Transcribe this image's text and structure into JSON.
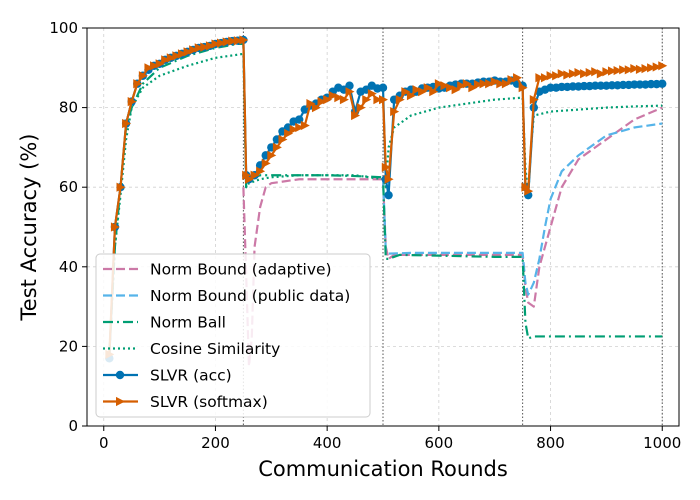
{
  "chart_data": {
    "type": "line",
    "xlabel": "Communication Rounds",
    "ylabel": "Test Accuracy (%)",
    "xlim": [
      -30,
      1030
    ],
    "ylim": [
      0,
      100
    ],
    "xticks": [
      0,
      200,
      400,
      600,
      800,
      1000
    ],
    "yticks": [
      0,
      20,
      40,
      60,
      80,
      100
    ],
    "grid": true,
    "vlines": [
      250,
      500,
      750,
      1000
    ],
    "legend_position": "lower-left",
    "series": [
      {
        "name": "Norm Bound (adaptive)",
        "color": "#cc79a7",
        "style": "dashed",
        "marker": "none",
        "points": [
          [
            250,
            60
          ],
          [
            255,
            38
          ],
          [
            260,
            15
          ],
          [
            265,
            22
          ],
          [
            270,
            45
          ],
          [
            280,
            55
          ],
          [
            290,
            60
          ],
          [
            300,
            61
          ],
          [
            350,
            62
          ],
          [
            400,
            62
          ],
          [
            450,
            62
          ],
          [
            500,
            62
          ],
          [
            505,
            45
          ],
          [
            510,
            42
          ],
          [
            520,
            43
          ],
          [
            600,
            43
          ],
          [
            700,
            43
          ],
          [
            750,
            43
          ],
          [
            755,
            35
          ],
          [
            760,
            31
          ],
          [
            770,
            30
          ],
          [
            780,
            40
          ],
          [
            800,
            50
          ],
          [
            820,
            60
          ],
          [
            850,
            67
          ],
          [
            900,
            72
          ],
          [
            950,
            77
          ],
          [
            1000,
            80
          ]
        ]
      },
      {
        "name": "Norm Bound (public data)",
        "color": "#56b4e9",
        "style": "dashed",
        "marker": "none",
        "points": [
          [
            500,
            62.5
          ],
          [
            505,
            44
          ],
          [
            510,
            43.3
          ],
          [
            550,
            43.5
          ],
          [
            600,
            43.5
          ],
          [
            700,
            43.5
          ],
          [
            750,
            43.5
          ],
          [
            755,
            36
          ],
          [
            760,
            33
          ],
          [
            770,
            36
          ],
          [
            780,
            42
          ],
          [
            790,
            50
          ],
          [
            800,
            57
          ],
          [
            820,
            64
          ],
          [
            850,
            68
          ],
          [
            900,
            73
          ],
          [
            950,
            75
          ],
          [
            1000,
            76
          ]
        ]
      },
      {
        "name": "Norm Ball",
        "color": "#009e73",
        "style": "dashdot",
        "marker": "none",
        "points": [
          [
            10,
            18
          ],
          [
            20,
            45
          ],
          [
            30,
            60
          ],
          [
            40,
            75
          ],
          [
            50,
            80
          ],
          [
            70,
            86
          ],
          [
            100,
            90
          ],
          [
            150,
            93
          ],
          [
            200,
            95
          ],
          [
            240,
            96
          ],
          [
            250,
            96
          ],
          [
            255,
            60
          ],
          [
            260,
            62
          ],
          [
            280,
            63
          ],
          [
            350,
            63
          ],
          [
            400,
            63
          ],
          [
            450,
            62.8
          ],
          [
            500,
            62.5
          ],
          [
            505,
            42
          ],
          [
            510,
            42
          ],
          [
            530,
            43
          ],
          [
            600,
            42.8
          ],
          [
            700,
            42.5
          ],
          [
            750,
            42.5
          ],
          [
            755,
            26
          ],
          [
            760,
            22
          ],
          [
            770,
            22.5
          ],
          [
            800,
            22.5
          ],
          [
            900,
            22.5
          ],
          [
            1000,
            22.5
          ]
        ]
      },
      {
        "name": "Cosine Similarity",
        "color": "#009e73",
        "style": "dotted",
        "marker": "none",
        "points": [
          [
            10,
            18
          ],
          [
            20,
            45
          ],
          [
            30,
            58
          ],
          [
            40,
            72
          ],
          [
            50,
            80
          ],
          [
            70,
            85
          ],
          [
            100,
            88
          ],
          [
            150,
            90.5
          ],
          [
            200,
            92.5
          ],
          [
            250,
            93.5
          ],
          [
            255,
            60
          ],
          [
            260,
            61
          ],
          [
            280,
            62
          ],
          [
            300,
            62.5
          ],
          [
            350,
            63
          ],
          [
            400,
            63
          ],
          [
            450,
            63
          ],
          [
            500,
            62
          ],
          [
            505,
            60
          ],
          [
            510,
            70
          ],
          [
            520,
            75
          ],
          [
            550,
            78
          ],
          [
            600,
            80
          ],
          [
            650,
            81
          ],
          [
            700,
            82
          ],
          [
            750,
            82.5
          ],
          [
            755,
            65
          ],
          [
            760,
            58
          ],
          [
            765,
            70
          ],
          [
            770,
            78
          ],
          [
            800,
            79
          ],
          [
            850,
            79.5
          ],
          [
            900,
            80
          ],
          [
            950,
            80.3
          ],
          [
            1000,
            80.5
          ]
        ]
      },
      {
        "name": "SLVR (acc)",
        "color": "#0072b2",
        "style": "solid",
        "marker": "circle",
        "points": [
          [
            10,
            17
          ],
          [
            20,
            50
          ],
          [
            30,
            60
          ],
          [
            40,
            76
          ],
          [
            50,
            81.5
          ],
          [
            60,
            86
          ],
          [
            70,
            88
          ],
          [
            80,
            89.5
          ],
          [
            90,
            90.5
          ],
          [
            100,
            91
          ],
          [
            110,
            92
          ],
          [
            120,
            92.5
          ],
          [
            130,
            93
          ],
          [
            140,
            93.5
          ],
          [
            150,
            94
          ],
          [
            160,
            94.5
          ],
          [
            170,
            95
          ],
          [
            180,
            95.2
          ],
          [
            190,
            95.5
          ],
          [
            200,
            96
          ],
          [
            210,
            96.2
          ],
          [
            220,
            96.5
          ],
          [
            230,
            96.7
          ],
          [
            240,
            96.8
          ],
          [
            250,
            97
          ],
          [
            255,
            63
          ],
          [
            260,
            62
          ],
          [
            270,
            63
          ],
          [
            280,
            65.5
          ],
          [
            290,
            68
          ],
          [
            300,
            70
          ],
          [
            310,
            72
          ],
          [
            320,
            74
          ],
          [
            330,
            75
          ],
          [
            340,
            76.5
          ],
          [
            350,
            77
          ],
          [
            360,
            79.5
          ],
          [
            370,
            80.5
          ],
          [
            380,
            81
          ],
          [
            390,
            82
          ],
          [
            400,
            82.5
          ],
          [
            410,
            84
          ],
          [
            420,
            85
          ],
          [
            430,
            84.5
          ],
          [
            440,
            85.5
          ],
          [
            450,
            79
          ],
          [
            460,
            84
          ],
          [
            470,
            84.5
          ],
          [
            480,
            85.5
          ],
          [
            490,
            84.8
          ],
          [
            500,
            85
          ],
          [
            505,
            62
          ],
          [
            510,
            58
          ],
          [
            520,
            82
          ],
          [
            530,
            83
          ],
          [
            540,
            84
          ],
          [
            550,
            84.5
          ],
          [
            560,
            84
          ],
          [
            570,
            84.8
          ],
          [
            580,
            85
          ],
          [
            590,
            85.2
          ],
          [
            600,
            84.8
          ],
          [
            610,
            85
          ],
          [
            620,
            85.5
          ],
          [
            630,
            85.8
          ],
          [
            640,
            86
          ],
          [
            650,
            86
          ],
          [
            660,
            86
          ],
          [
            670,
            86.3
          ],
          [
            680,
            86.5
          ],
          [
            690,
            86.5
          ],
          [
            700,
            86.8
          ],
          [
            710,
            86.5
          ],
          [
            720,
            86.5
          ],
          [
            730,
            86.8
          ],
          [
            740,
            86
          ],
          [
            750,
            85.5
          ],
          [
            755,
            60
          ],
          [
            760,
            58
          ],
          [
            770,
            80
          ],
          [
            780,
            84
          ],
          [
            790,
            84.5
          ],
          [
            800,
            85
          ],
          [
            810,
            85
          ],
          [
            820,
            85.2
          ],
          [
            830,
            85.2
          ],
          [
            840,
            85.3
          ],
          [
            850,
            85.3
          ],
          [
            860,
            85.4
          ],
          [
            870,
            85.4
          ],
          [
            880,
            85.5
          ],
          [
            890,
            85.5
          ],
          [
            900,
            85.5
          ],
          [
            910,
            85.6
          ],
          [
            920,
            85.6
          ],
          [
            930,
            85.7
          ],
          [
            940,
            85.7
          ],
          [
            950,
            85.8
          ],
          [
            960,
            85.8
          ],
          [
            970,
            85.8
          ],
          [
            980,
            85.9
          ],
          [
            990,
            85.9
          ],
          [
            1000,
            86
          ]
        ]
      },
      {
        "name": "SLVR (softmax)",
        "color": "#d55e00",
        "style": "solid",
        "marker": "triangle-right",
        "points": [
          [
            10,
            18
          ],
          [
            20,
            50
          ],
          [
            30,
            60
          ],
          [
            40,
            76
          ],
          [
            50,
            81.5
          ],
          [
            60,
            86
          ],
          [
            70,
            88
          ],
          [
            80,
            90
          ],
          [
            90,
            90.5
          ],
          [
            100,
            91
          ],
          [
            110,
            92
          ],
          [
            120,
            92.5
          ],
          [
            130,
            93
          ],
          [
            140,
            93.5
          ],
          [
            150,
            94
          ],
          [
            160,
            94.5
          ],
          [
            170,
            95
          ],
          [
            180,
            95.2
          ],
          [
            190,
            95.5
          ],
          [
            200,
            96
          ],
          [
            210,
            96.2
          ],
          [
            220,
            96.5
          ],
          [
            230,
            96.7
          ],
          [
            240,
            96.8
          ],
          [
            250,
            97
          ],
          [
            255,
            63
          ],
          [
            260,
            62
          ],
          [
            270,
            63
          ],
          [
            280,
            64
          ],
          [
            290,
            66
          ],
          [
            300,
            68
          ],
          [
            310,
            70
          ],
          [
            320,
            72
          ],
          [
            330,
            73.5
          ],
          [
            340,
            74.5
          ],
          [
            350,
            75
          ],
          [
            360,
            75.5
          ],
          [
            370,
            81
          ],
          [
            380,
            80
          ],
          [
            390,
            81.5
          ],
          [
            400,
            82
          ],
          [
            410,
            83
          ],
          [
            420,
            82.5
          ],
          [
            430,
            82
          ],
          [
            440,
            84
          ],
          [
            450,
            78
          ],
          [
            460,
            80
          ],
          [
            470,
            82
          ],
          [
            480,
            83.5
          ],
          [
            490,
            82
          ],
          [
            500,
            82
          ],
          [
            505,
            65
          ],
          [
            510,
            62
          ],
          [
            520,
            79
          ],
          [
            530,
            82
          ],
          [
            540,
            84
          ],
          [
            550,
            83
          ],
          [
            560,
            84.5
          ],
          [
            570,
            84
          ],
          [
            580,
            85
          ],
          [
            590,
            84
          ],
          [
            600,
            86
          ],
          [
            610,
            85.5
          ],
          [
            620,
            85
          ],
          [
            630,
            84.5
          ],
          [
            640,
            85.5
          ],
          [
            650,
            86
          ],
          [
            660,
            85
          ],
          [
            670,
            85.8
          ],
          [
            680,
            86
          ],
          [
            690,
            86
          ],
          [
            700,
            86.5
          ],
          [
            710,
            86
          ],
          [
            720,
            86
          ],
          [
            730,
            87
          ],
          [
            740,
            87.5
          ],
          [
            750,
            85
          ],
          [
            755,
            60
          ],
          [
            760,
            59
          ],
          [
            770,
            82
          ],
          [
            780,
            87.5
          ],
          [
            790,
            87.5
          ],
          [
            800,
            88
          ],
          [
            810,
            88
          ],
          [
            820,
            88.5
          ],
          [
            830,
            88.2
          ],
          [
            840,
            88.5
          ],
          [
            850,
            88.8
          ],
          [
            860,
            88.5
          ],
          [
            870,
            88.8
          ],
          [
            880,
            89
          ],
          [
            890,
            88.5
          ],
          [
            900,
            89
          ],
          [
            910,
            89.2
          ],
          [
            920,
            89.3
          ],
          [
            930,
            89.5
          ],
          [
            940,
            89.5
          ],
          [
            950,
            89.8
          ],
          [
            960,
            89.6
          ],
          [
            970,
            89.8
          ],
          [
            980,
            90
          ],
          [
            990,
            90.2
          ],
          [
            1000,
            90.5
          ]
        ]
      }
    ]
  }
}
